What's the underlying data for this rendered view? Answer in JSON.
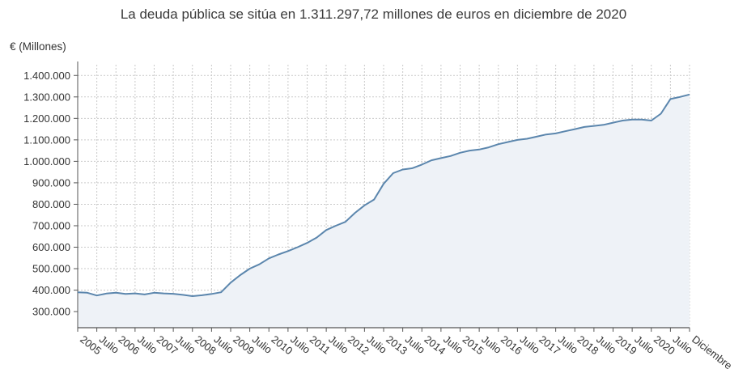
{
  "chart_data": {
    "type": "area",
    "title": "La deuda pública se sitúa en 1.311.297,72 millones de euros en diciembre de 2020",
    "ylabel": "€ (Millones)",
    "xlabel": "",
    "ylim": [
      225000,
      1450000
    ],
    "yticks": [
      300000,
      400000,
      500000,
      600000,
      700000,
      800000,
      900000,
      1000000,
      1100000,
      1200000,
      1300000,
      1400000
    ],
    "ytick_labels": [
      "300.000",
      "400.000",
      "500.000",
      "600.000",
      "700.000",
      "800.000",
      "900.000",
      "1.000.000",
      "1.100.000",
      "1.200.000",
      "1.300.000",
      "1.400.000"
    ],
    "xlim": [
      2005.0,
      2021.0
    ],
    "xticks": [
      {
        "x": 2005.0,
        "label": "2005"
      },
      {
        "x": 2005.5,
        "label": "Julio"
      },
      {
        "x": 2006.0,
        "label": "2006"
      },
      {
        "x": 2006.5,
        "label": "Julio"
      },
      {
        "x": 2007.0,
        "label": "2007"
      },
      {
        "x": 2007.5,
        "label": "Julio"
      },
      {
        "x": 2008.0,
        "label": "2008"
      },
      {
        "x": 2008.5,
        "label": "Julio"
      },
      {
        "x": 2009.0,
        "label": "2009"
      },
      {
        "x": 2009.5,
        "label": "Julio"
      },
      {
        "x": 2010.0,
        "label": "2010"
      },
      {
        "x": 2010.5,
        "label": "Julio"
      },
      {
        "x": 2011.0,
        "label": "2011"
      },
      {
        "x": 2011.5,
        "label": "Julio"
      },
      {
        "x": 2012.0,
        "label": "2012"
      },
      {
        "x": 2012.5,
        "label": "Julio"
      },
      {
        "x": 2013.0,
        "label": "2013"
      },
      {
        "x": 2013.5,
        "label": "Julio"
      },
      {
        "x": 2014.0,
        "label": "2014"
      },
      {
        "x": 2014.5,
        "label": "Julio"
      },
      {
        "x": 2015.0,
        "label": "2015"
      },
      {
        "x": 2015.5,
        "label": "Julio"
      },
      {
        "x": 2016.0,
        "label": "2016"
      },
      {
        "x": 2016.5,
        "label": "Julio"
      },
      {
        "x": 2017.0,
        "label": "2017"
      },
      {
        "x": 2017.5,
        "label": "Julio"
      },
      {
        "x": 2018.0,
        "label": "2018"
      },
      {
        "x": 2018.5,
        "label": "Julio"
      },
      {
        "x": 2019.0,
        "label": "2019"
      },
      {
        "x": 2019.5,
        "label": "Julio"
      },
      {
        "x": 2020.0,
        "label": "2020"
      },
      {
        "x": 2020.5,
        "label": "Julio"
      },
      {
        "x": 2021.0,
        "label": "Diciembre"
      }
    ],
    "grid": true,
    "series": [
      {
        "name": "Deuda pública",
        "color": "#5b86ad",
        "fill": "#eef2f7",
        "points": [
          [
            2005.0,
            390000
          ],
          [
            2005.25,
            388000
          ],
          [
            2005.5,
            375000
          ],
          [
            2005.75,
            384000
          ],
          [
            2006.0,
            388000
          ],
          [
            2006.25,
            382000
          ],
          [
            2006.5,
            385000
          ],
          [
            2006.75,
            380000
          ],
          [
            2007.0,
            388000
          ],
          [
            2007.25,
            385000
          ],
          [
            2007.5,
            383000
          ],
          [
            2007.75,
            378000
          ],
          [
            2008.0,
            372000
          ],
          [
            2008.25,
            376000
          ],
          [
            2008.5,
            382000
          ],
          [
            2008.75,
            390000
          ],
          [
            2009.0,
            435000
          ],
          [
            2009.25,
            470000
          ],
          [
            2009.5,
            500000
          ],
          [
            2009.75,
            520000
          ],
          [
            2010.0,
            548000
          ],
          [
            2010.25,
            566000
          ],
          [
            2010.5,
            582000
          ],
          [
            2010.75,
            600000
          ],
          [
            2011.0,
            620000
          ],
          [
            2011.25,
            645000
          ],
          [
            2011.5,
            680000
          ],
          [
            2011.75,
            700000
          ],
          [
            2012.0,
            718000
          ],
          [
            2012.25,
            760000
          ],
          [
            2012.5,
            795000
          ],
          [
            2012.75,
            822000
          ],
          [
            2013.0,
            895000
          ],
          [
            2013.25,
            945000
          ],
          [
            2013.5,
            962000
          ],
          [
            2013.75,
            968000
          ],
          [
            2014.0,
            985000
          ],
          [
            2014.25,
            1005000
          ],
          [
            2014.5,
            1015000
          ],
          [
            2014.75,
            1025000
          ],
          [
            2015.0,
            1040000
          ],
          [
            2015.25,
            1050000
          ],
          [
            2015.5,
            1055000
          ],
          [
            2015.75,
            1065000
          ],
          [
            2016.0,
            1080000
          ],
          [
            2016.25,
            1090000
          ],
          [
            2016.5,
            1100000
          ],
          [
            2016.75,
            1105000
          ],
          [
            2017.0,
            1115000
          ],
          [
            2017.25,
            1125000
          ],
          [
            2017.5,
            1130000
          ],
          [
            2017.75,
            1140000
          ],
          [
            2018.0,
            1150000
          ],
          [
            2018.25,
            1160000
          ],
          [
            2018.5,
            1165000
          ],
          [
            2018.75,
            1170000
          ],
          [
            2019.0,
            1180000
          ],
          [
            2019.25,
            1190000
          ],
          [
            2019.5,
            1195000
          ],
          [
            2019.75,
            1195000
          ],
          [
            2020.0,
            1190000
          ],
          [
            2020.25,
            1222000
          ],
          [
            2020.5,
            1290000
          ],
          [
            2020.75,
            1300000
          ],
          [
            2021.0,
            1311298
          ]
        ]
      }
    ]
  }
}
